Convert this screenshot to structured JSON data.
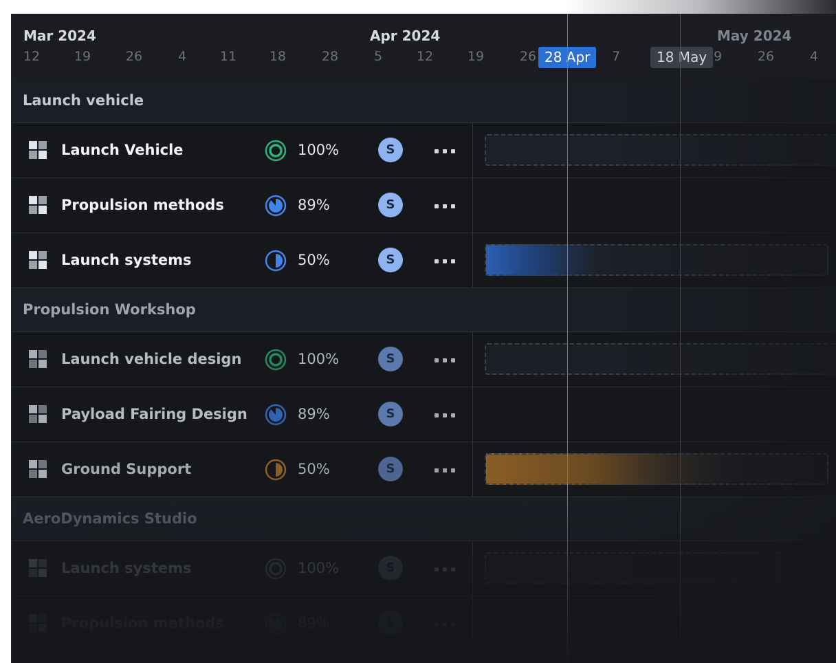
{
  "timeline": {
    "months": [
      "Mar 2024",
      "Apr 2024",
      "May 2024"
    ],
    "ticks": [
      "12",
      "19",
      "26",
      "4",
      "11",
      "18",
      "28",
      "5",
      "12",
      "19",
      "26",
      "7",
      "9",
      "26",
      "4"
    ],
    "today_marker": "28 Apr",
    "milestone_marker": "18 May"
  },
  "colors": {
    "complete": "#27a06a",
    "progress": "#3a7fe0",
    "ground": "#9c6a2b",
    "avatar": "#8fb2f0",
    "bar_blue": "#2d64b8",
    "bar_orange": "#9a6a2c",
    "today_line": "#3f82e6"
  },
  "groups": [
    {
      "title": "Launch vehicle",
      "tasks": [
        {
          "name": "Launch Vehicle",
          "progress": "100%",
          "progress_value": 1.0,
          "assignee": "S",
          "more_icon": "more-horizontal-icon"
        },
        {
          "name": "Propulsion methods",
          "progress": "89%",
          "progress_value": 0.89,
          "assignee": "S",
          "more_icon": "more-horizontal-icon"
        },
        {
          "name": "Launch systems",
          "progress": "50%",
          "progress_value": 0.5,
          "assignee": "S",
          "more_icon": "more-horizontal-icon"
        }
      ]
    },
    {
      "title": "Propulsion Workshop",
      "tasks": [
        {
          "name": "Launch vehicle design",
          "progress": "100%",
          "progress_value": 1.0,
          "assignee": "S",
          "more_icon": "more-horizontal-icon"
        },
        {
          "name": "Payload Fairing Design",
          "progress": "89%",
          "progress_value": 0.89,
          "assignee": "S",
          "more_icon": "more-horizontal-icon"
        },
        {
          "name": "Ground Support",
          "progress": "50%",
          "progress_value": 0.5,
          "assignee": "S",
          "more_icon": "more-horizontal-icon"
        }
      ]
    },
    {
      "title": "AeroDynamics Studio",
      "tasks": [
        {
          "name": "Launch systems",
          "progress": "100%",
          "progress_value": 1.0,
          "assignee": "S",
          "more_icon": "more-horizontal-icon"
        },
        {
          "name": "Propulsion methods",
          "progress": "89%",
          "progress_value": 0.89,
          "assignee": "S",
          "more_icon": "more-horizontal-icon"
        }
      ]
    }
  ]
}
